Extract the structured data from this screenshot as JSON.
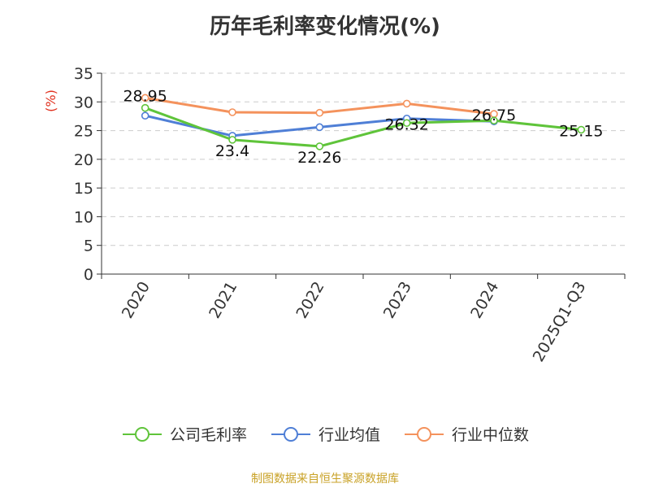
{
  "chart_data": {
    "type": "line",
    "title": "历年毛利率变化情况(%)",
    "ylabel": "(%)",
    "categories": [
      "2020",
      "2021",
      "2022",
      "2023",
      "2024",
      "2025Q1-Q3"
    ],
    "ylim": [
      0,
      35
    ],
    "yticks": [
      0,
      5,
      10,
      15,
      20,
      25,
      30,
      35
    ],
    "grid": true,
    "legend_position": "bottom",
    "series": [
      {
        "name": "公司毛利率",
        "color": "#5fc43a",
        "values": [
          28.95,
          23.4,
          22.26,
          26.32,
          26.75,
          25.15
        ],
        "labels": [
          "28.95",
          "23.4",
          "22.26",
          "26.32",
          "26.75",
          "25.15"
        ]
      },
      {
        "name": "行业均值",
        "color": "#4f7fd6",
        "values": [
          27.6,
          24.1,
          25.6,
          27.1,
          26.6,
          null
        ]
      },
      {
        "name": "行业中位数",
        "color": "#f4925c",
        "values": [
          30.7,
          28.2,
          28.1,
          29.7,
          27.9,
          null
        ]
      }
    ]
  },
  "footer": {
    "source": "制图数据来自恒生聚源数据库"
  }
}
